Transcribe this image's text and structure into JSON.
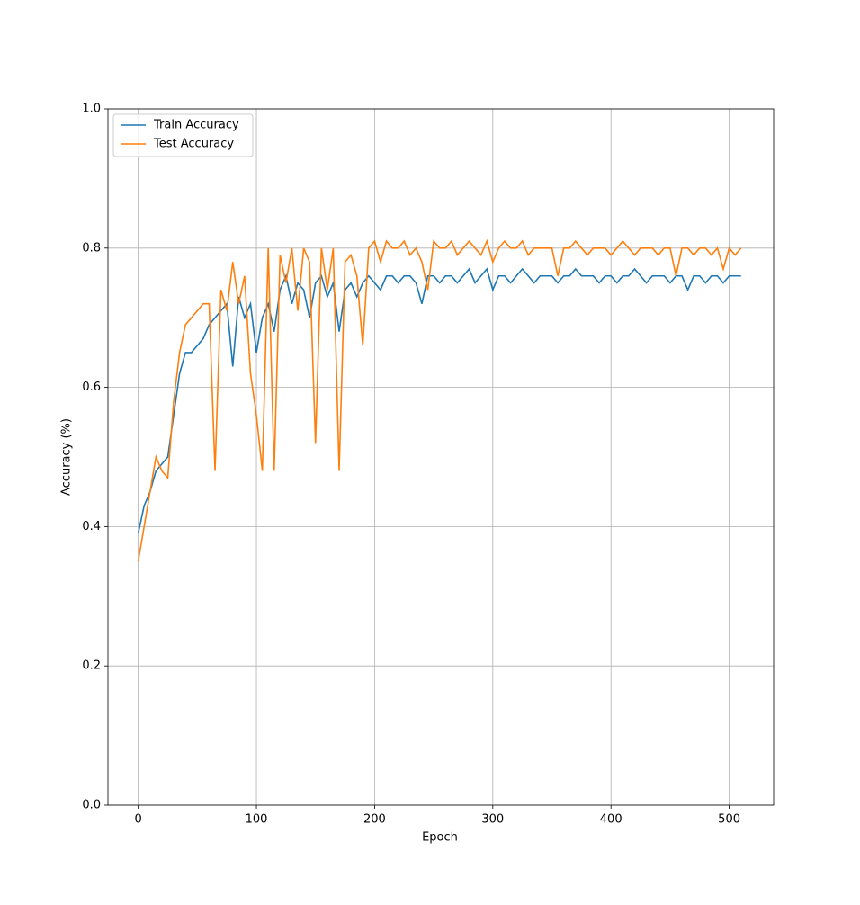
{
  "chart_data": {
    "type": "line",
    "xlabel": "Epoch",
    "ylabel": "Accuracy (%)",
    "x": [
      0,
      5,
      10,
      15,
      20,
      25,
      30,
      35,
      40,
      45,
      50,
      55,
      60,
      65,
      70,
      75,
      80,
      85,
      90,
      95,
      100,
      105,
      110,
      115,
      120,
      125,
      130,
      135,
      140,
      145,
      150,
      155,
      160,
      165,
      170,
      175,
      180,
      185,
      190,
      195,
      200,
      205,
      210,
      215,
      220,
      225,
      230,
      235,
      240,
      245,
      250,
      255,
      260,
      265,
      270,
      275,
      280,
      285,
      290,
      295,
      300,
      305,
      310,
      315,
      320,
      325,
      330,
      335,
      340,
      345,
      350,
      355,
      360,
      365,
      370,
      375,
      380,
      385,
      390,
      395,
      400,
      405,
      410,
      415,
      420,
      425,
      430,
      435,
      440,
      445,
      450,
      455,
      460,
      465,
      470,
      475,
      480,
      485,
      490,
      495,
      500,
      505,
      510
    ],
    "series": [
      {
        "name": "Train Accuracy",
        "color": "#1f77b4",
        "values": [
          0.39,
          0.43,
          0.45,
          0.48,
          0.49,
          0.5,
          0.56,
          0.62,
          0.65,
          0.65,
          0.66,
          0.67,
          0.69,
          0.7,
          0.71,
          0.72,
          0.63,
          0.73,
          0.7,
          0.72,
          0.65,
          0.7,
          0.72,
          0.68,
          0.74,
          0.76,
          0.72,
          0.75,
          0.74,
          0.7,
          0.75,
          0.76,
          0.73,
          0.75,
          0.68,
          0.74,
          0.75,
          0.73,
          0.75,
          0.76,
          0.75,
          0.74,
          0.76,
          0.76,
          0.75,
          0.76,
          0.76,
          0.75,
          0.72,
          0.76,
          0.76,
          0.75,
          0.76,
          0.76,
          0.75,
          0.76,
          0.77,
          0.75,
          0.76,
          0.77,
          0.74,
          0.76,
          0.76,
          0.75,
          0.76,
          0.77,
          0.76,
          0.75,
          0.76,
          0.76,
          0.76,
          0.75,
          0.76,
          0.76,
          0.77,
          0.76,
          0.76,
          0.76,
          0.75,
          0.76,
          0.76,
          0.75,
          0.76,
          0.76,
          0.77,
          0.76,
          0.75,
          0.76,
          0.76,
          0.76,
          0.75,
          0.76,
          0.76,
          0.74,
          0.76,
          0.76,
          0.75,
          0.76,
          0.76,
          0.75,
          0.76,
          0.76,
          0.76
        ]
      },
      {
        "name": "Test Accuracy",
        "color": "#ff7f0e",
        "values": [
          0.35,
          0.4,
          0.45,
          0.5,
          0.48,
          0.47,
          0.58,
          0.65,
          0.69,
          0.7,
          0.71,
          0.72,
          0.72,
          0.48,
          0.74,
          0.71,
          0.78,
          0.72,
          0.76,
          0.62,
          0.56,
          0.48,
          0.8,
          0.48,
          0.79,
          0.75,
          0.8,
          0.71,
          0.8,
          0.78,
          0.52,
          0.8,
          0.74,
          0.8,
          0.48,
          0.78,
          0.79,
          0.76,
          0.66,
          0.8,
          0.81,
          0.78,
          0.81,
          0.8,
          0.8,
          0.81,
          0.79,
          0.8,
          0.78,
          0.74,
          0.81,
          0.8,
          0.8,
          0.81,
          0.79,
          0.8,
          0.81,
          0.8,
          0.79,
          0.81,
          0.78,
          0.8,
          0.81,
          0.8,
          0.8,
          0.81,
          0.79,
          0.8,
          0.8,
          0.8,
          0.8,
          0.76,
          0.8,
          0.8,
          0.81,
          0.8,
          0.79,
          0.8,
          0.8,
          0.8,
          0.79,
          0.8,
          0.81,
          0.8,
          0.79,
          0.8,
          0.8,
          0.8,
          0.79,
          0.8,
          0.8,
          0.76,
          0.8,
          0.8,
          0.79,
          0.8,
          0.8,
          0.79,
          0.8,
          0.77,
          0.8,
          0.79,
          0.8
        ]
      }
    ],
    "xlim": [
      -25.6,
      537.6
    ],
    "xticks": [
      0,
      100,
      200,
      300,
      400,
      500
    ],
    "ylim": [
      0,
      1
    ],
    "yticks": [
      {
        "value": 0,
        "label": "0.0"
      },
      0.2,
      0.4,
      0.6,
      0.8,
      {
        "value": 1,
        "label": "1.0"
      }
    ],
    "grid": true,
    "legend": "upper left"
  }
}
